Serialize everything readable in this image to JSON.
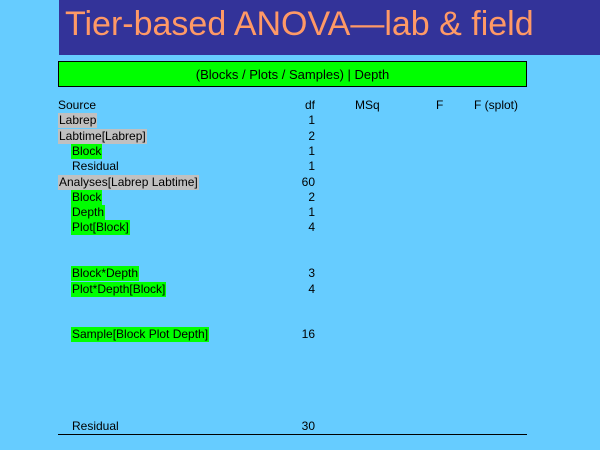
{
  "title": "Tier-based ANOVA—lab & field",
  "header": "(Blocks / Plots / Samples) | Depth",
  "columns": {
    "source": "Source",
    "df": "df",
    "msq": "MSq",
    "f": "F",
    "f_splot": "F (splot)"
  },
  "rows": [
    {
      "source": "Labrep",
      "df": "1",
      "highlight": "grey"
    },
    {
      "source": "Labtime[Labrep]",
      "df": "2",
      "highlight": "grey"
    },
    {
      "source": "Block",
      "df": "1",
      "highlight": "green"
    },
    {
      "source": "Residual",
      "df": "1",
      "highlight": "none"
    },
    {
      "source": "Analyses[Labrep Labtime]",
      "df": "60",
      "highlight": "grey"
    },
    {
      "source": "Block",
      "df": "2",
      "highlight": "green"
    },
    {
      "source": "Depth",
      "df": "1",
      "highlight": "green"
    },
    {
      "source": "Plot[Block]",
      "df": "4",
      "highlight": "green"
    },
    {
      "source": "Block*Depth",
      "df": "3",
      "highlight": "green"
    },
    {
      "source": "Plot*Depth[Block]",
      "df": "4",
      "highlight": "green"
    },
    {
      "source": "Sample[Block Plot Depth]",
      "df": "16",
      "highlight": "green"
    },
    {
      "source": "Residual",
      "df": "30",
      "highlight": "none"
    }
  ],
  "colors": {
    "background": "#66ccff",
    "title_bar": "#333399",
    "title_text": "#ff9966",
    "green_highlight": "#00ff00",
    "grey_highlight": "#c0c0c0"
  }
}
